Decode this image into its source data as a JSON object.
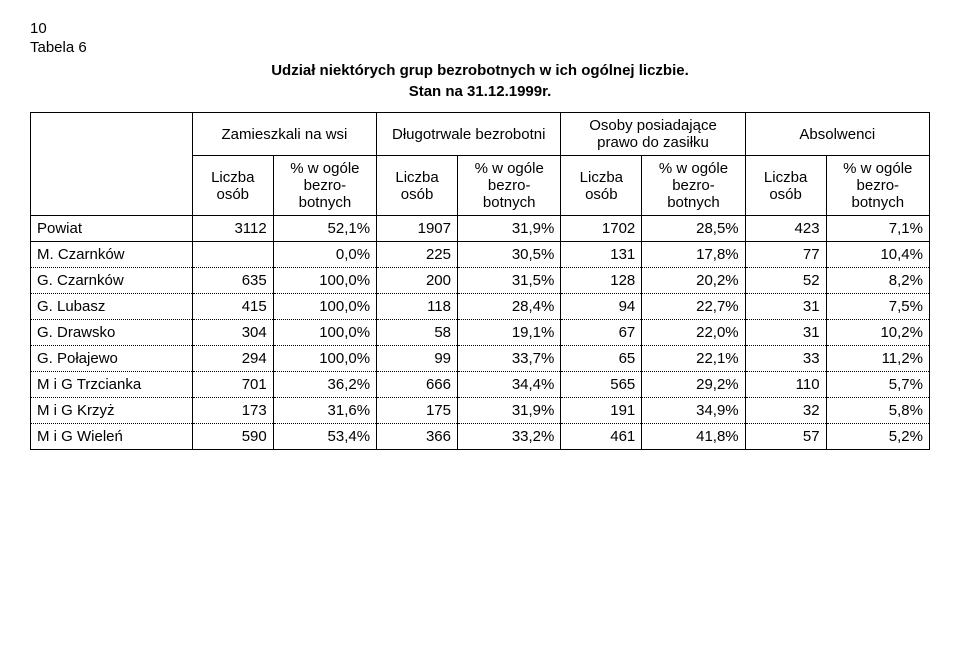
{
  "page_number": "10",
  "table_label": "Tabela 6",
  "title_line1": "Udział niektórych grup bezrobotnych w ich ogólnej liczbie.",
  "title_line2": "Stan na 31.12.1999r.",
  "header": {
    "groups": [
      "Zamieszkali na wsi",
      "Długotrwale bezrobotni",
      "Osoby posiadające prawo do zasiłku",
      "Absolwenci"
    ],
    "sub_count": "Liczba osób",
    "sub_pct": "% w ogóle bezro-botnych"
  },
  "rows": [
    {
      "label": "Powiat",
      "c1": "3112",
      "p1": "52,1%",
      "c2": "1907",
      "p2": "31,9%",
      "c3": "1702",
      "p3": "28,5%",
      "c4": "423",
      "p4": "7,1%",
      "solid": true
    },
    {
      "label": "M. Czarnków",
      "c1": "",
      "p1": "0,0%",
      "c2": "225",
      "p2": "30,5%",
      "c3": "131",
      "p3": "17,8%",
      "c4": "77",
      "p4": "10,4%"
    },
    {
      "label": "G. Czarnków",
      "c1": "635",
      "p1": "100,0%",
      "c2": "200",
      "p2": "31,5%",
      "c3": "128",
      "p3": "20,2%",
      "c4": "52",
      "p4": "8,2%"
    },
    {
      "label": "G. Lubasz",
      "c1": "415",
      "p1": "100,0%",
      "c2": "118",
      "p2": "28,4%",
      "c3": "94",
      "p3": "22,7%",
      "c4": "31",
      "p4": "7,5%"
    },
    {
      "label": "G. Drawsko",
      "c1": "304",
      "p1": "100,0%",
      "c2": "58",
      "p2": "19,1%",
      "c3": "67",
      "p3": "22,0%",
      "c4": "31",
      "p4": "10,2%"
    },
    {
      "label": "G. Połajewo",
      "c1": "294",
      "p1": "100,0%",
      "c2": "99",
      "p2": "33,7%",
      "c3": "65",
      "p3": "22,1%",
      "c4": "33",
      "p4": "11,2%"
    },
    {
      "label": "M i G Trzcianka",
      "c1": "701",
      "p1": "36,2%",
      "c2": "666",
      "p2": "34,4%",
      "c3": "565",
      "p3": "29,2%",
      "c4": "110",
      "p4": "5,7%"
    },
    {
      "label": "M i G Krzyż",
      "c1": "173",
      "p1": "31,6%",
      "c2": "175",
      "p2": "31,9%",
      "c3": "191",
      "p3": "34,9%",
      "c4": "32",
      "p4": "5,8%"
    },
    {
      "label": "M i G Wieleń",
      "c1": "590",
      "p1": "53,4%",
      "c2": "366",
      "p2": "33,2%",
      "c3": "461",
      "p3": "41,8%",
      "c4": "57",
      "p4": "5,2%",
      "bottom": true
    }
  ],
  "style": {
    "background": "#ffffff",
    "text_color": "#000000",
    "border_color": "#000000",
    "dotted_color": "#000000",
    "font_family": "Arial",
    "base_fontsize_pt": 11,
    "col_widths_pct": [
      18,
      9,
      11.5,
      9,
      11.5,
      9,
      11.5,
      9,
      11.5
    ]
  }
}
